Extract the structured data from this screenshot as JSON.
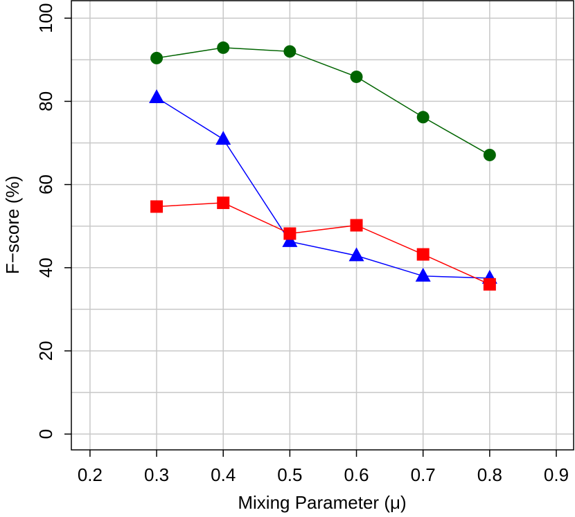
{
  "chart_data": {
    "type": "line",
    "x_label": "Mixing Parameter (μ)",
    "y_label": "F−score (%)",
    "x": [
      0.3,
      0.4,
      0.5,
      0.6,
      0.7,
      0.8
    ],
    "series": [
      {
        "color": "#006400",
        "marker": "circle",
        "values": [
          90.4,
          92.9,
          92.0,
          85.9,
          76.2,
          67.1
        ]
      },
      {
        "color": "#0000ff",
        "marker": "triangle",
        "values": [
          80.9,
          70.9,
          46.3,
          42.9,
          38.0,
          37.5
        ]
      },
      {
        "color": "#ff0000",
        "marker": "square",
        "values": [
          54.7,
          55.6,
          48.2,
          50.2,
          43.2,
          36.0
        ]
      }
    ],
    "xlim": [
      0.172,
      0.926
    ],
    "ylim": [
      -3.8,
      104.2
    ],
    "xticks": [
      0.2,
      0.3,
      0.4,
      0.5,
      0.6,
      0.7,
      0.8,
      0.9
    ],
    "yticks": [
      0,
      20,
      40,
      60,
      80,
      100
    ],
    "yminor": [
      10,
      30,
      50,
      70,
      90
    ],
    "grid": true
  }
}
